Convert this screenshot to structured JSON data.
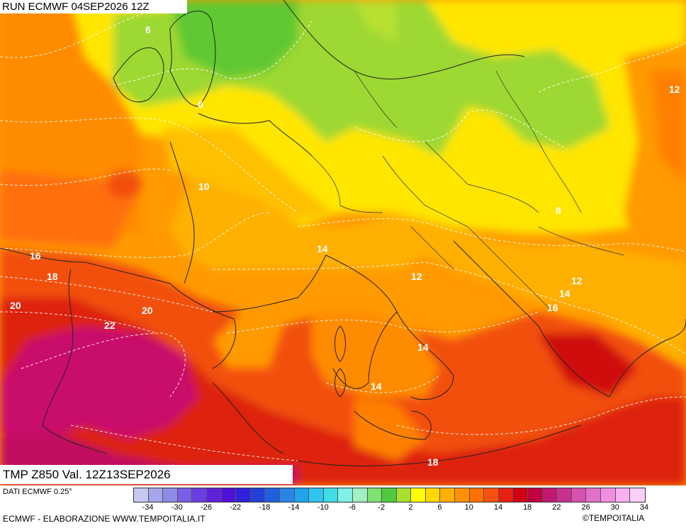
{
  "header": {
    "run_label": "RUN ECMWF 04SEP2026 12Z"
  },
  "footer": {
    "param_label": "TMP Z850 Val. 12Z13SEP2026",
    "data_source": "DATI ECMWF 0.25°",
    "credit": "ECMWF - ELABORAZIONE WWW.TEMPOITALIA.IT",
    "copyright": "©TEMPOITALIA"
  },
  "legend": {
    "colors": [
      "#c8c8f0",
      "#a6a6ec",
      "#8c8ce8",
      "#7a5ee6",
      "#6a3ee2",
      "#6020d8",
      "#5010d8",
      "#3020d8",
      "#2040d8",
      "#2060e0",
      "#2a84e6",
      "#20a4ec",
      "#30c4f0",
      "#40dce8",
      "#80f0e8",
      "#a0f0c0",
      "#80e070",
      "#50c840",
      "#a8e030",
      "#ffff00",
      "#ffd800",
      "#ffb000",
      "#ff9000",
      "#ff7000",
      "#f85010",
      "#e82010",
      "#d00010",
      "#c00040",
      "#c01870",
      "#c83090",
      "#d850b0",
      "#e070c8",
      "#f090e0",
      "#f8b0f0",
      "#fad0f8"
    ],
    "ticks": [
      "-34",
      "-30",
      "-26",
      "-22",
      "-18",
      "-14",
      "-10",
      "-6",
      "-2",
      "2",
      "6",
      "10",
      "14",
      "18",
      "22",
      "26",
      "30",
      "34"
    ]
  },
  "map": {
    "contour_labels": [
      "6",
      "6",
      "12",
      "10",
      "8",
      "16",
      "18",
      "14",
      "20",
      "20",
      "12",
      "12",
      "14",
      "22",
      "16",
      "14",
      "14",
      "18"
    ]
  }
}
